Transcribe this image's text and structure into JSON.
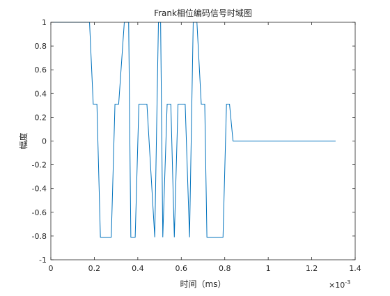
{
  "chart_data": {
    "type": "line",
    "title": "Frank相位编码信号时域图",
    "xlabel": "时间（ms）",
    "ylabel": "幅度",
    "x_exponent_label": "×10",
    "x_exponent_power": "-3",
    "xlim": [
      0,
      1.4
    ],
    "ylim": [
      -1,
      1
    ],
    "xticks": [
      0,
      0.2,
      0.4,
      0.6,
      0.8,
      1,
      1.2,
      1.4
    ],
    "xtick_labels": [
      "0",
      "0.2",
      "0.4",
      "0.6",
      "0.8",
      "1",
      "1.2",
      "1.4"
    ],
    "yticks": [
      -1,
      -0.8,
      -0.6,
      -0.4,
      -0.2,
      0,
      0.2,
      0.4,
      0.6,
      0.8,
      1
    ],
    "ytick_labels": [
      "-1",
      "-0.8",
      "-0.6",
      "-0.4",
      "-0.2",
      "0",
      "0.2",
      "0.4",
      "0.6",
      "0.8",
      "1"
    ],
    "grid": false,
    "line_color": "#0072BD",
    "series": [
      {
        "x": [
          0,
          0.178,
          0.195,
          0.212,
          0.228,
          0.278,
          0.295,
          0.312,
          0.338,
          0.358,
          0.368,
          0.388,
          0.405,
          0.422,
          0.442,
          0.478,
          0.495,
          0.505,
          0.515,
          0.535,
          0.552,
          0.568,
          0.585,
          0.605,
          0.618,
          0.638,
          0.655,
          0.672,
          0.692,
          0.708,
          0.718,
          0.728,
          0.762,
          0.792,
          0.808,
          0.822,
          0.838,
          1.31
        ],
        "y": [
          1,
          1,
          0.31,
          0.31,
          -0.81,
          -0.81,
          0.31,
          0.31,
          1,
          1,
          -0.81,
          -0.81,
          0.31,
          0.31,
          0.31,
          -0.81,
          1,
          1,
          -0.81,
          0.31,
          0.31,
          -0.81,
          0.31,
          0.31,
          0.31,
          -0.81,
          1,
          1,
          0.31,
          0.31,
          -0.81,
          -0.81,
          -0.81,
          -0.81,
          0.31,
          0.31,
          0,
          0
        ]
      }
    ]
  }
}
